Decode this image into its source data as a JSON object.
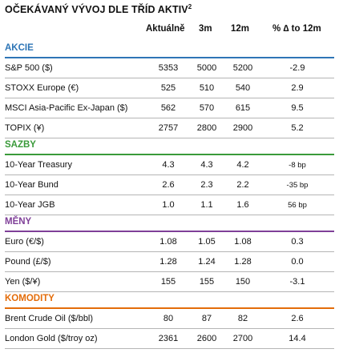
{
  "title": "OČEKÁVANÝ VÝVOJ DLE TŘÍD AKTIV",
  "title_sup": "2",
  "columns": [
    "Aktuálně",
    "3m",
    "12m",
    "% ∆ to 12m"
  ],
  "sections": [
    {
      "name": "AKCIE",
      "color": "#2e75b6",
      "rows": [
        {
          "label": "S&P 500 ($)",
          "v": [
            "5353",
            "5000",
            "5200",
            "-2.9"
          ]
        },
        {
          "label": "STOXX Europe (€)",
          "v": [
            "525",
            "510",
            "540",
            "2.9"
          ]
        },
        {
          "label": "MSCI Asia-Pacific Ex-Japan ($)",
          "v": [
            "562",
            "570",
            "615",
            "9.5"
          ]
        },
        {
          "label": "TOPIX (¥)",
          "v": [
            "2757",
            "2800",
            "2900",
            "5.2"
          ]
        }
      ]
    },
    {
      "name": "SAZBY",
      "color": "#3a9a3a",
      "rows": [
        {
          "label": "10-Year Treasury",
          "v": [
            "4.3",
            "4.3",
            "4.2",
            "-8 bp"
          ]
        },
        {
          "label": "10-Year Bund",
          "v": [
            "2.6",
            "2.3",
            "2.2",
            "-35 bp"
          ]
        },
        {
          "label": "10-Year JGB",
          "v": [
            "1.0",
            "1.1",
            "1.6",
            "56 bp"
          ]
        }
      ]
    },
    {
      "name": "MĚNY",
      "color": "#7f3f98",
      "rows": [
        {
          "label": "Euro (€/$)",
          "v": [
            "1.08",
            "1.05",
            "1.08",
            "0.3"
          ]
        },
        {
          "label": "Pound (£/$)",
          "v": [
            "1.28",
            "1.24",
            "1.28",
            "0.0"
          ]
        },
        {
          "label": "Yen ($/¥)",
          "v": [
            "155",
            "155",
            "150",
            "-3.1"
          ]
        }
      ]
    },
    {
      "name": "KOMODITY",
      "color": "#e36c0a",
      "rows": [
        {
          "label": "Brent Crude Oil ($/bbl)",
          "v": [
            "80",
            "87",
            "82",
            "2.6"
          ]
        },
        {
          "label": "London Gold ($/troy oz)",
          "v": [
            "2361",
            "2600",
            "2700",
            "14.4"
          ]
        }
      ]
    }
  ]
}
